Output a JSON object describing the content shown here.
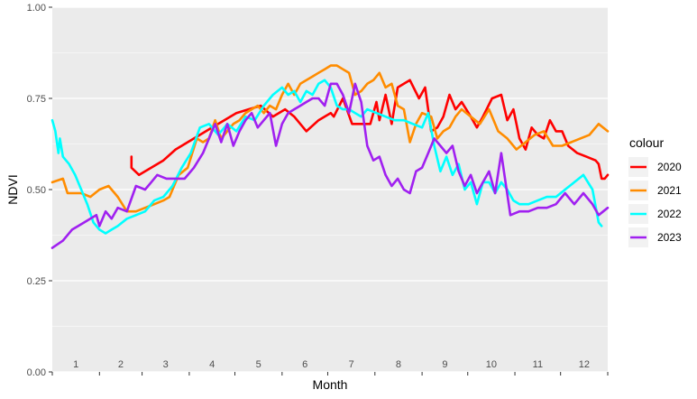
{
  "chart_data": {
    "type": "line",
    "title": "",
    "xlabel": "Month",
    "ylabel": "NDVI",
    "ylim": [
      0,
      1
    ],
    "xlim": [
      1,
      366
    ],
    "y_ticks": [
      {
        "value": 0,
        "label": "0.00"
      },
      {
        "value": 0.25,
        "label": "0.25"
      },
      {
        "value": 0.5,
        "label": "0.50"
      },
      {
        "value": 0.75,
        "label": "0.75"
      },
      {
        "value": 1,
        "label": "1.00"
      }
    ],
    "month_labels": [
      "1",
      "2",
      "3",
      "4",
      "5",
      "6",
      "7",
      "8",
      "9",
      "10",
      "11",
      "12"
    ],
    "month_start_days": [
      1,
      32,
      60,
      91,
      121,
      152,
      182,
      213,
      244,
      274,
      305,
      335
    ],
    "grid": true,
    "legend": {
      "title": "colour",
      "position": "right"
    },
    "series": [
      {
        "name": "2020",
        "color": "#ff0000",
        "x": [
          53,
          53,
          58,
          66,
          74,
          82,
          90,
          98,
          106,
          114,
          122,
          130,
          138,
          146,
          154,
          160,
          168,
          176,
          184,
          186,
          192,
          198,
          204,
          210,
          214,
          216,
          220,
          224,
          228,
          232,
          236,
          242,
          246,
          250,
          254,
          258,
          262,
          266,
          270,
          276,
          280,
          284,
          290,
          296,
          300,
          304,
          308,
          312,
          316,
          320,
          324,
          328,
          332,
          336,
          340,
          346,
          352,
          358,
          360,
          362,
          364,
          366
        ],
        "y": [
          0.59,
          0.56,
          0.54,
          0.56,
          0.58,
          0.61,
          0.63,
          0.65,
          0.67,
          0.69,
          0.71,
          0.72,
          0.73,
          0.7,
          0.72,
          0.7,
          0.66,
          0.69,
          0.71,
          0.7,
          0.75,
          0.68,
          0.68,
          0.68,
          0.74,
          0.69,
          0.76,
          0.68,
          0.78,
          0.79,
          0.8,
          0.75,
          0.78,
          0.66,
          0.67,
          0.7,
          0.76,
          0.72,
          0.74,
          0.7,
          0.67,
          0.7,
          0.75,
          0.76,
          0.69,
          0.72,
          0.64,
          0.61,
          0.67,
          0.65,
          0.64,
          0.69,
          0.66,
          0.66,
          0.62,
          0.6,
          0.59,
          0.58,
          0.57,
          0.53,
          0.53,
          0.54
        ]
      },
      {
        "name": "2021",
        "color": "#ff8c00",
        "x": [
          1,
          8,
          11,
          14,
          20,
          26,
          32,
          38,
          44,
          50,
          56,
          62,
          68,
          74,
          78,
          84,
          90,
          96,
          100,
          104,
          108,
          112,
          116,
          120,
          124,
          128,
          132,
          136,
          140,
          144,
          148,
          152,
          156,
          160,
          164,
          168,
          172,
          176,
          180,
          184,
          188,
          192,
          196,
          200,
          204,
          208,
          212,
          216,
          220,
          224,
          228,
          232,
          236,
          240,
          244,
          250,
          254,
          258,
          262,
          266,
          270,
          276,
          282,
          288,
          294,
          300,
          306,
          312,
          318,
          324,
          330,
          336,
          342,
          348,
          354,
          360,
          366
        ],
        "y": [
          0.52,
          0.53,
          0.49,
          0.49,
          0.49,
          0.48,
          0.5,
          0.51,
          0.48,
          0.44,
          0.44,
          0.45,
          0.46,
          0.47,
          0.48,
          0.54,
          0.56,
          0.64,
          0.63,
          0.64,
          0.69,
          0.64,
          0.66,
          0.68,
          0.69,
          0.71,
          0.72,
          0.73,
          0.71,
          0.73,
          0.72,
          0.76,
          0.79,
          0.76,
          0.79,
          0.8,
          0.81,
          0.82,
          0.83,
          0.84,
          0.84,
          0.83,
          0.82,
          0.76,
          0.77,
          0.79,
          0.8,
          0.82,
          0.78,
          0.79,
          0.73,
          0.72,
          0.63,
          0.68,
          0.71,
          0.7,
          0.64,
          0.66,
          0.67,
          0.7,
          0.72,
          0.7,
          0.68,
          0.72,
          0.66,
          0.64,
          0.61,
          0.63,
          0.65,
          0.66,
          0.62,
          0.62,
          0.63,
          0.64,
          0.65,
          0.68,
          0.66
        ]
      },
      {
        "name": "2022",
        "color": "#00ffff",
        "x": [
          1,
          3,
          5,
          6,
          8,
          10,
          12,
          16,
          20,
          24,
          28,
          32,
          36,
          40,
          44,
          50,
          56,
          62,
          68,
          74,
          80,
          86,
          92,
          98,
          104,
          110,
          116,
          122,
          128,
          134,
          140,
          146,
          152,
          156,
          160,
          164,
          168,
          172,
          176,
          180,
          184,
          188,
          192,
          196,
          200,
          204,
          208,
          214,
          220,
          226,
          232,
          238,
          244,
          248,
          252,
          256,
          260,
          264,
          268,
          272,
          276,
          280,
          284,
          288,
          292,
          296,
          300,
          304,
          308,
          314,
          320,
          326,
          332,
          338,
          344,
          350,
          356,
          360,
          362
        ],
        "y": [
          0.69,
          0.66,
          0.6,
          0.64,
          0.59,
          0.58,
          0.57,
          0.54,
          0.5,
          0.46,
          0.41,
          0.39,
          0.38,
          0.39,
          0.4,
          0.42,
          0.43,
          0.44,
          0.47,
          0.48,
          0.51,
          0.56,
          0.6,
          0.67,
          0.68,
          0.65,
          0.68,
          0.66,
          0.7,
          0.69,
          0.73,
          0.76,
          0.78,
          0.76,
          0.77,
          0.74,
          0.77,
          0.76,
          0.79,
          0.8,
          0.78,
          0.73,
          0.72,
          0.72,
          0.71,
          0.7,
          0.72,
          0.71,
          0.7,
          0.69,
          0.69,
          0.68,
          0.67,
          0.71,
          0.62,
          0.55,
          0.59,
          0.54,
          0.57,
          0.5,
          0.52,
          0.46,
          0.52,
          0.52,
          0.49,
          0.52,
          0.5,
          0.47,
          0.46,
          0.46,
          0.47,
          0.48,
          0.48,
          0.5,
          0.52,
          0.54,
          0.5,
          0.41,
          0.4
        ]
      },
      {
        "name": "2023",
        "color": "#a020f0",
        "x": [
          1,
          8,
          14,
          18,
          22,
          26,
          30,
          32,
          36,
          40,
          44,
          50,
          56,
          62,
          66,
          70,
          76,
          82,
          88,
          94,
          100,
          104,
          108,
          112,
          116,
          120,
          124,
          128,
          132,
          136,
          140,
          144,
          148,
          152,
          156,
          160,
          164,
          168,
          172,
          176,
          180,
          184,
          188,
          192,
          196,
          200,
          204,
          208,
          212,
          216,
          220,
          224,
          228,
          232,
          236,
          240,
          244,
          248,
          252,
          256,
          260,
          264,
          268,
          272,
          276,
          280,
          284,
          288,
          292,
          296,
          302,
          308,
          314,
          320,
          326,
          332,
          338,
          344,
          350,
          356,
          360,
          366
        ],
        "y": [
          0.34,
          0.36,
          0.39,
          0.4,
          0.41,
          0.42,
          0.43,
          0.4,
          0.44,
          0.42,
          0.45,
          0.44,
          0.51,
          0.5,
          0.52,
          0.54,
          0.53,
          0.53,
          0.53,
          0.56,
          0.6,
          0.64,
          0.68,
          0.63,
          0.68,
          0.62,
          0.66,
          0.69,
          0.71,
          0.67,
          0.69,
          0.71,
          0.62,
          0.68,
          0.71,
          0.72,
          0.73,
          0.74,
          0.75,
          0.75,
          0.73,
          0.79,
          0.79,
          0.76,
          0.71,
          0.79,
          0.74,
          0.62,
          0.58,
          0.59,
          0.54,
          0.51,
          0.53,
          0.5,
          0.49,
          0.55,
          0.56,
          0.6,
          0.64,
          0.62,
          0.6,
          0.62,
          0.55,
          0.51,
          0.54,
          0.49,
          0.52,
          0.55,
          0.49,
          0.6,
          0.43,
          0.44,
          0.44,
          0.45,
          0.45,
          0.46,
          0.49,
          0.46,
          0.49,
          0.46,
          0.43,
          0.45
        ]
      }
    ]
  }
}
